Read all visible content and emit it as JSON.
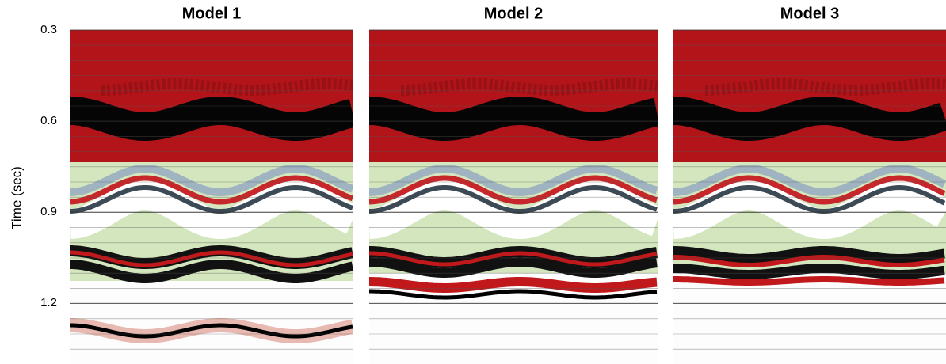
{
  "chart_data": {
    "type": "seismic",
    "panels": [
      {
        "title": "Model 1"
      },
      {
        "title": "Model 2"
      },
      {
        "title": "Model 3"
      }
    ],
    "y_label": "Time (sec)",
    "ylim": [
      0.3,
      1.4
    ],
    "yticks": [
      0.3,
      0.6,
      0.9,
      1.2
    ],
    "grid": true
  }
}
